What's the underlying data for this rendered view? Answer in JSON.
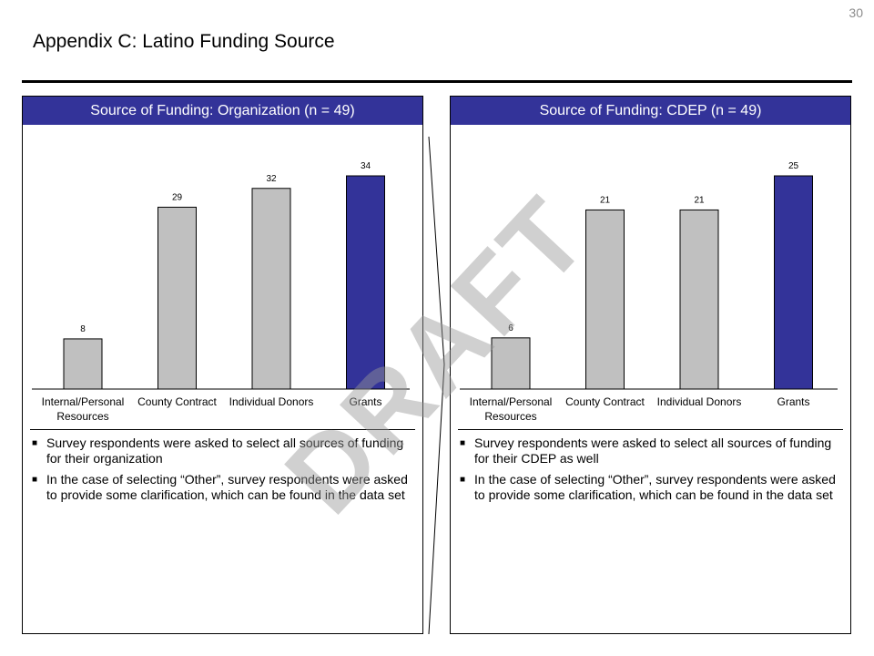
{
  "page": {
    "number": "30",
    "title": "Appendix C: Latino Funding Source",
    "watermark": "DRAFT"
  },
  "colors": {
    "header_bg": "#333399",
    "bar_gray": "#C0C0C0",
    "bar_highlight": "#333399"
  },
  "panels": [
    {
      "header": "Source of Funding: Organization (n = 49)",
      "notes": [
        "Survey respondents were asked to select all sources of funding for their organization",
        "In the case of selecting “Other”, survey respondents were asked to provide some clarification, which can be found in the data set"
      ]
    },
    {
      "header": "Source of Funding: CDEP (n = 49)",
      "notes": [
        "Survey respondents were asked to select all sources of funding for their CDEP as well",
        "In the case of selecting “Other”, survey respondents were asked to provide some clarification, which can be found in the data set"
      ]
    }
  ],
  "chart_data": [
    {
      "type": "bar",
      "title": "Source of Funding: Organization (n = 49)",
      "categories": [
        [
          "Internal/Personal",
          "Resources"
        ],
        [
          "County Contract"
        ],
        [
          "Individual Donors"
        ],
        [
          "Grants"
        ]
      ],
      "values": [
        8,
        29,
        32,
        34
      ],
      "highlight": [
        false,
        false,
        false,
        true
      ],
      "ylim": [
        0,
        34
      ],
      "grid": false,
      "legend": "none"
    },
    {
      "type": "bar",
      "title": "Source of Funding: CDEP (n = 49)",
      "categories": [
        [
          "Internal/Personal",
          "Resources"
        ],
        [
          "County Contract"
        ],
        [
          "Individual Donors"
        ],
        [
          "Grants"
        ]
      ],
      "values": [
        6,
        21,
        21,
        25
      ],
      "highlight": [
        false,
        false,
        false,
        true
      ],
      "ylim": [
        0,
        25
      ],
      "grid": false,
      "legend": "none"
    }
  ]
}
